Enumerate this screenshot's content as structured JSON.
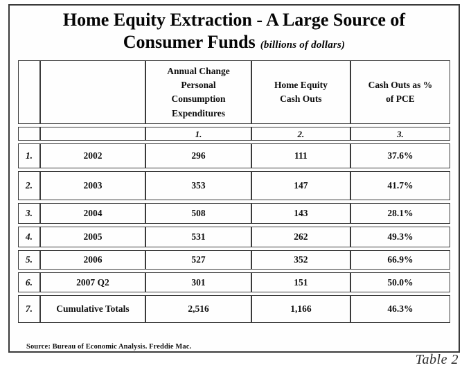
{
  "document": {
    "title_line1": "Home Equity Extraction - A Large Source of",
    "title_line2": "Consumer Funds",
    "title_unit": "(billions of dollars)",
    "source_note": "Source: Bureau of Economic Analysis. Freddie Mac.",
    "table_caption": "Table 2"
  },
  "table": {
    "headers": {
      "pce": "Annual Change\nPersonal\nConsumption\nExpenditures",
      "cashouts": "Home Equity\nCash Outs",
      "pct": "Cash Outs as %\nof PCE"
    },
    "column_numbers": {
      "pce": "1.",
      "cashouts": "2.",
      "pct": "3."
    },
    "rows": [
      {
        "num": "1.",
        "label": "2002",
        "pce": "296",
        "cashouts": "111",
        "pct": "37.6%"
      },
      {
        "num": "2.",
        "label": "2003",
        "pce": "353",
        "cashouts": "147",
        "pct": "41.7%"
      },
      {
        "num": "3.",
        "label": "2004",
        "pce": "508",
        "cashouts": "143",
        "pct": "28.1%"
      },
      {
        "num": "4.",
        "label": "2005",
        "pce": "531",
        "cashouts": "262",
        "pct": "49.3%"
      },
      {
        "num": "5.",
        "label": "2006",
        "pce": "527",
        "cashouts": "352",
        "pct": "66.9%"
      },
      {
        "num": "6.",
        "label": "2007 Q2",
        "pce": "301",
        "cashouts": "151",
        "pct": "50.0%"
      },
      {
        "num": "7.",
        "label": "Cumulative Totals",
        "pce": "2,516",
        "cashouts": "1,166",
        "pct": "46.3%"
      }
    ]
  }
}
